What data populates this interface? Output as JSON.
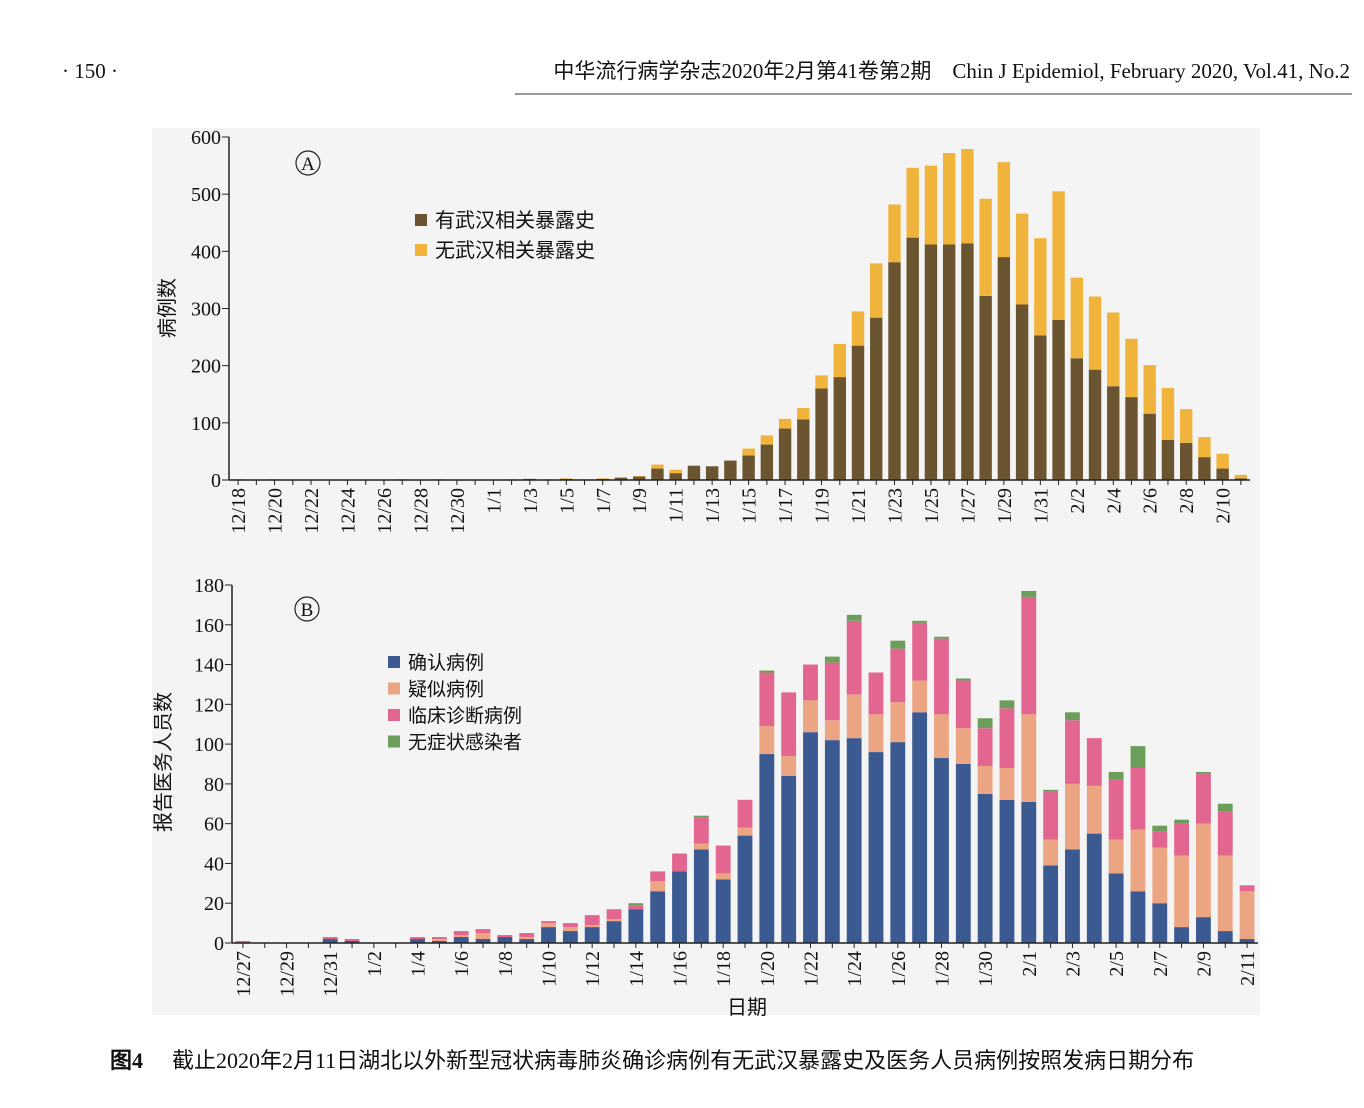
{
  "header": {
    "page": "· 150 ·",
    "journal": "中华流行病学杂志2020年2月第41卷第2期　Chin J Epidemiol, February 2020, Vol.41, No.2"
  },
  "chart_data": [
    {
      "type": "bar",
      "stacked": true,
      "panel_label": "A",
      "y_label": "病例数",
      "legend_location": "upper left",
      "categories": [
        "12/18",
        null,
        "12/20",
        null,
        "12/22",
        null,
        "12/24",
        null,
        "12/26",
        null,
        "12/28",
        null,
        "12/30",
        null,
        "1/1",
        null,
        "1/3",
        null,
        "1/5",
        null,
        "1/7",
        null,
        "1/9",
        null,
        "1/11",
        null,
        "1/13",
        null,
        "1/15",
        null,
        "1/17",
        null,
        "1/19",
        null,
        "1/21",
        null,
        "1/23",
        null,
        "1/25",
        null,
        "1/27",
        null,
        "1/29",
        null,
        "1/31",
        null,
        "2/2",
        null,
        "2/4",
        null,
        "2/6",
        null,
        "2/8",
        null,
        "2/10",
        null
      ],
      "series": [
        {
          "name": "有武汉相关暴露史",
          "color": "#6b5530",
          "values": [
            1,
            0,
            1,
            0,
            0,
            0,
            0,
            0,
            0,
            1,
            0,
            1,
            0,
            0,
            0,
            1,
            2,
            1,
            2,
            1,
            2,
            4,
            6,
            20,
            12,
            25,
            24,
            34,
            43,
            62,
            90,
            106,
            160,
            180,
            235,
            284,
            381,
            424,
            412,
            412,
            414,
            322,
            390,
            307,
            253,
            280,
            213,
            193,
            164,
            145,
            116,
            70,
            65,
            40,
            20,
            3
          ]
        },
        {
          "name": "无武汉相关暴露史",
          "color": "#f0b43c",
          "values": [
            0,
            0,
            0,
            0,
            0,
            0,
            0,
            0,
            0,
            0,
            0,
            0,
            0,
            0,
            0,
            0,
            0,
            0,
            1,
            0,
            1,
            1,
            1,
            7,
            6,
            0,
            0,
            0,
            12,
            16,
            17,
            20,
            23,
            58,
            60,
            95,
            101,
            122,
            138,
            160,
            165,
            170,
            166,
            159,
            170,
            225,
            141,
            128,
            129,
            102,
            85,
            91,
            59,
            35,
            26,
            6
          ]
        }
      ],
      "ylim": [
        0,
        600
      ],
      "yticks": [
        0,
        100,
        200,
        300,
        400,
        500,
        600
      ]
    },
    {
      "type": "bar",
      "stacked": true,
      "panel_label": "B",
      "y_label": "报告医务人员数",
      "x_label": "日期",
      "legend_location": "upper left",
      "categories": [
        "12/27",
        null,
        "12/29",
        null,
        "12/31",
        null,
        "1/2",
        null,
        "1/4",
        null,
        "1/6",
        null,
        "1/8",
        null,
        "1/10",
        null,
        "1/12",
        null,
        "1/14",
        null,
        "1/16",
        null,
        "1/18",
        null,
        "1/20",
        null,
        "1/22",
        null,
        "1/24",
        null,
        "1/26",
        null,
        "1/28",
        null,
        "1/30",
        null,
        "2/1",
        null,
        "2/3",
        null,
        "2/5",
        null,
        "2/7",
        null,
        "2/9",
        null,
        "2/11"
      ],
      "series": [
        {
          "name": "确认病例",
          "color": "#3b5a92",
          "values": [
            0,
            0,
            0,
            0,
            2,
            1,
            0,
            0,
            2,
            1,
            3,
            2,
            3,
            2,
            8,
            6,
            8,
            11,
            17,
            26,
            36,
            47,
            32,
            54,
            95,
            84,
            106,
            102,
            103,
            96,
            101,
            116,
            93,
            90,
            75,
            72,
            71,
            39,
            47,
            55,
            35,
            26,
            20,
            8,
            13,
            6,
            2
          ]
        },
        {
          "name": "疑似病例",
          "color": "#eba583",
          "values": [
            0,
            0,
            0,
            0,
            0,
            0,
            0,
            0,
            0,
            1,
            1,
            3,
            0,
            1,
            2,
            2,
            1,
            1,
            0,
            5,
            0,
            3,
            3,
            4,
            14,
            10,
            16,
            10,
            22,
            19,
            20,
            16,
            22,
            18,
            14,
            16,
            44,
            13,
            33,
            24,
            17,
            31,
            28,
            36,
            47,
            38,
            24
          ]
        },
        {
          "name": "临床诊断病例",
          "color": "#e2668f",
          "values": [
            1,
            0,
            0,
            0,
            1,
            1,
            0,
            0,
            1,
            1,
            2,
            2,
            1,
            2,
            1,
            2,
            5,
            5,
            2,
            5,
            9,
            13,
            14,
            14,
            27,
            32,
            18,
            29,
            37,
            21,
            27,
            29,
            38,
            24,
            19,
            30,
            59,
            24,
            32,
            24,
            30,
            31,
            8,
            16,
            25,
            22,
            3
          ]
        },
        {
          "name": "无症状感染者",
          "color": "#6b9e5a",
          "values": [
            0,
            0,
            0,
            0,
            0,
            0,
            0,
            0,
            0,
            0,
            0,
            0,
            0,
            0,
            0,
            0,
            0,
            0,
            1,
            0,
            0,
            1,
            0,
            0,
            1,
            0,
            0,
            3,
            3,
            0,
            4,
            1,
            1,
            1,
            5,
            4,
            3,
            1,
            4,
            0,
            4,
            11,
            3,
            2,
            1,
            4,
            0
          ]
        }
      ],
      "ylim": [
        0,
        180
      ],
      "yticks": [
        0,
        20,
        40,
        60,
        80,
        100,
        120,
        140,
        160,
        180
      ]
    }
  ],
  "caption": {
    "label": "图4",
    "text": "截止2020年2月11日湖北以外新型冠状病毒肺炎确诊病例有无武汉暴露史及医务人员病例按照发病日期分布"
  }
}
